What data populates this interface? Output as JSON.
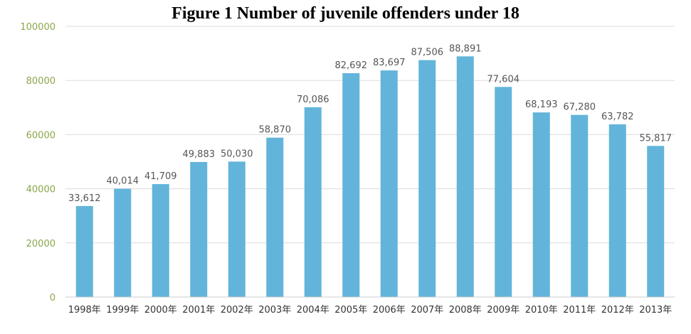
{
  "chart_data": {
    "type": "bar",
    "title": "Figure 1 Number of juvenile offenders under 18",
    "categories": [
      "1998年",
      "1999年",
      "2000年",
      "2001年",
      "2002年",
      "2003年",
      "2004年",
      "2005年",
      "2006年",
      "2007年",
      "2008年",
      "2009年",
      "2010年",
      "2011年",
      "2012年",
      "2013年"
    ],
    "values": [
      33612,
      40014,
      41709,
      49883,
      50030,
      58870,
      70086,
      82692,
      83697,
      87506,
      88891,
      77604,
      68193,
      67280,
      63782,
      55817
    ],
    "data_labels": [
      "33,612",
      "40,014",
      "41,709",
      "49,883",
      "50,030",
      "58,870",
      "70,086",
      "82,692",
      "83,697",
      "87,506",
      "88,891",
      "77,604",
      "68,193",
      "67,280",
      "63,782",
      "55,817"
    ],
    "yticks": [
      0,
      20000,
      40000,
      60000,
      80000,
      100000
    ],
    "ylim": [
      0,
      100000
    ],
    "xlabel": "",
    "ylabel": "",
    "grid": true,
    "colors": {
      "bar": "#62b4da",
      "ytick": "#8aa64a",
      "grid": "#dcdcdc",
      "axis": "#cccccc"
    }
  }
}
